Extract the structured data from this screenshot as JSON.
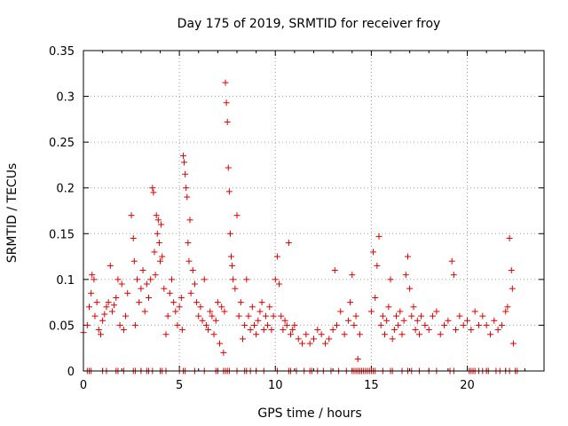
{
  "chart_data": {
    "type": "scatter",
    "title": "Day 175 of 2019, SRMTID for receiver froy",
    "xlabel": "GPS time / hours",
    "ylabel": "SRMTID / TECUs",
    "xlim": [
      0,
      24
    ],
    "ylim": [
      0,
      0.35
    ],
    "x_ticks": [
      0,
      5,
      10,
      15,
      20
    ],
    "x_tick_labels": [
      "0",
      "5",
      "10",
      "15",
      "20"
    ],
    "y_ticks": [
      0,
      0.05,
      0.1,
      0.15,
      0.2,
      0.25,
      0.3,
      0.35
    ],
    "y_tick_labels": [
      "0",
      "0.05",
      "0.1",
      "0.15",
      "0.2",
      "0.25",
      "0.3",
      "0.35"
    ],
    "grid": true,
    "marker": "+",
    "color": "#dd0000",
    "series": [
      {
        "name": "SRMTID",
        "points": [
          [
            0.0,
            0.042
          ],
          [
            0.2,
            0.05
          ],
          [
            0.3,
            0.07
          ],
          [
            0.4,
            0.085
          ],
          [
            0.45,
            0.105
          ],
          [
            0.55,
            0.1
          ],
          [
            0.6,
            0.06
          ],
          [
            0.7,
            0.075
          ],
          [
            0.8,
            0.045
          ],
          [
            0.9,
            0.04
          ],
          [
            1.0,
            0.055
          ],
          [
            1.1,
            0.062
          ],
          [
            1.2,
            0.07
          ],
          [
            1.3,
            0.075
          ],
          [
            1.4,
            0.115
          ],
          [
            1.5,
            0.065
          ],
          [
            1.6,
            0.072
          ],
          [
            1.7,
            0.08
          ],
          [
            1.8,
            0.1
          ],
          [
            1.9,
            0.05
          ],
          [
            2.0,
            0.095
          ],
          [
            2.1,
            0.045
          ],
          [
            2.2,
            0.06
          ],
          [
            2.3,
            0.085
          ],
          [
            2.5,
            0.17
          ],
          [
            2.6,
            0.145
          ],
          [
            2.65,
            0.12
          ],
          [
            2.7,
            0.05
          ],
          [
            2.8,
            0.1
          ],
          [
            2.9,
            0.075
          ],
          [
            3.0,
            0.09
          ],
          [
            3.1,
            0.11
          ],
          [
            3.2,
            0.065
          ],
          [
            3.3,
            0.095
          ],
          [
            3.4,
            0.08
          ],
          [
            3.5,
            0.1
          ],
          [
            3.6,
            0.2
          ],
          [
            3.65,
            0.195
          ],
          [
            3.7,
            0.13
          ],
          [
            3.75,
            0.105
          ],
          [
            3.8,
            0.17
          ],
          [
            3.85,
            0.15
          ],
          [
            3.9,
            0.165
          ],
          [
            3.95,
            0.14
          ],
          [
            4.0,
            0.12
          ],
          [
            4.05,
            0.16
          ],
          [
            4.1,
            0.125
          ],
          [
            4.2,
            0.09
          ],
          [
            4.3,
            0.04
          ],
          [
            4.4,
            0.06
          ],
          [
            4.5,
            0.085
          ],
          [
            4.6,
            0.1
          ],
          [
            4.7,
            0.075
          ],
          [
            4.8,
            0.065
          ],
          [
            4.9,
            0.05
          ],
          [
            5.0,
            0.07
          ],
          [
            5.1,
            0.08
          ],
          [
            5.15,
            0.045
          ],
          [
            5.2,
            0.235
          ],
          [
            5.25,
            0.228
          ],
          [
            5.3,
            0.215
          ],
          [
            5.35,
            0.2
          ],
          [
            5.4,
            0.19
          ],
          [
            5.45,
            0.14
          ],
          [
            5.5,
            0.12
          ],
          [
            5.55,
            0.165
          ],
          [
            5.6,
            0.085
          ],
          [
            5.7,
            0.11
          ],
          [
            5.8,
            0.095
          ],
          [
            5.9,
            0.075
          ],
          [
            6.0,
            0.06
          ],
          [
            6.1,
            0.07
          ],
          [
            6.2,
            0.055
          ],
          [
            6.3,
            0.1
          ],
          [
            6.4,
            0.05
          ],
          [
            6.5,
            0.045
          ],
          [
            6.6,
            0.065
          ],
          [
            6.7,
            0.06
          ],
          [
            6.8,
            0.04
          ],
          [
            6.9,
            0.055
          ],
          [
            7.0,
            0.075
          ],
          [
            7.1,
            0.03
          ],
          [
            7.2,
            0.07
          ],
          [
            7.3,
            0.02
          ],
          [
            7.35,
            0.065
          ],
          [
            7.4,
            0.315
          ],
          [
            7.45,
            0.293
          ],
          [
            7.5,
            0.272
          ],
          [
            7.55,
            0.222
          ],
          [
            7.6,
            0.196
          ],
          [
            7.65,
            0.15
          ],
          [
            7.7,
            0.125
          ],
          [
            7.75,
            0.115
          ],
          [
            7.8,
            0.1
          ],
          [
            7.9,
            0.09
          ],
          [
            8.0,
            0.17
          ],
          [
            8.1,
            0.06
          ],
          [
            8.2,
            0.075
          ],
          [
            8.3,
            0.035
          ],
          [
            8.4,
            0.05
          ],
          [
            8.5,
            0.1
          ],
          [
            8.6,
            0.06
          ],
          [
            8.7,
            0.045
          ],
          [
            8.8,
            0.07
          ],
          [
            8.9,
            0.05
          ],
          [
            9.0,
            0.04
          ],
          [
            9.1,
            0.055
          ],
          [
            9.2,
            0.065
          ],
          [
            9.3,
            0.075
          ],
          [
            9.4,
            0.045
          ],
          [
            9.5,
            0.06
          ],
          [
            9.6,
            0.05
          ],
          [
            9.7,
            0.07
          ],
          [
            9.8,
            0.045
          ],
          [
            9.9,
            0.06
          ],
          [
            10.0,
            0.1
          ],
          [
            10.1,
            0.125
          ],
          [
            10.2,
            0.095
          ],
          [
            10.3,
            0.06
          ],
          [
            10.4,
            0.045
          ],
          [
            10.5,
            0.055
          ],
          [
            10.6,
            0.05
          ],
          [
            10.7,
            0.14
          ],
          [
            10.8,
            0.04
          ],
          [
            10.9,
            0.045
          ],
          [
            11.0,
            0.05
          ],
          [
            11.2,
            0.035
          ],
          [
            11.4,
            0.03
          ],
          [
            11.6,
            0.04
          ],
          [
            11.8,
            0.03
          ],
          [
            12.0,
            0.035
          ],
          [
            12.2,
            0.045
          ],
          [
            12.4,
            0.04
          ],
          [
            12.6,
            0.03
          ],
          [
            12.8,
            0.035
          ],
          [
            13.0,
            0.045
          ],
          [
            13.1,
            0.11
          ],
          [
            13.2,
            0.05
          ],
          [
            13.4,
            0.065
          ],
          [
            13.6,
            0.04
          ],
          [
            13.8,
            0.055
          ],
          [
            13.9,
            0.075
          ],
          [
            14.0,
            0.105
          ],
          [
            14.1,
            0.05
          ],
          [
            14.2,
            0.06
          ],
          [
            14.3,
            0.013
          ],
          [
            14.4,
            0.04
          ],
          [
            15.0,
            0.065
          ],
          [
            15.1,
            0.13
          ],
          [
            15.2,
            0.08
          ],
          [
            15.3,
            0.115
          ],
          [
            15.4,
            0.147
          ],
          [
            15.5,
            0.05
          ],
          [
            15.6,
            0.06
          ],
          [
            15.7,
            0.04
          ],
          [
            15.8,
            0.055
          ],
          [
            15.9,
            0.07
          ],
          [
            16.0,
            0.1
          ],
          [
            16.1,
            0.035
          ],
          [
            16.2,
            0.045
          ],
          [
            16.3,
            0.06
          ],
          [
            16.4,
            0.05
          ],
          [
            16.5,
            0.065
          ],
          [
            16.6,
            0.04
          ],
          [
            16.7,
            0.055
          ],
          [
            16.8,
            0.105
          ],
          [
            16.9,
            0.125
          ],
          [
            17.0,
            0.09
          ],
          [
            17.1,
            0.06
          ],
          [
            17.2,
            0.07
          ],
          [
            17.3,
            0.045
          ],
          [
            17.4,
            0.055
          ],
          [
            17.5,
            0.04
          ],
          [
            17.6,
            0.06
          ],
          [
            17.8,
            0.05
          ],
          [
            18.0,
            0.045
          ],
          [
            18.2,
            0.06
          ],
          [
            18.4,
            0.065
          ],
          [
            18.6,
            0.04
          ],
          [
            18.8,
            0.05
          ],
          [
            19.0,
            0.055
          ],
          [
            19.2,
            0.12
          ],
          [
            19.3,
            0.105
          ],
          [
            19.4,
            0.045
          ],
          [
            19.6,
            0.06
          ],
          [
            19.8,
            0.05
          ],
          [
            20.0,
            0.055
          ],
          [
            20.2,
            0.045
          ],
          [
            20.4,
            0.065
          ],
          [
            20.6,
            0.05
          ],
          [
            20.8,
            0.06
          ],
          [
            21.0,
            0.05
          ],
          [
            21.2,
            0.04
          ],
          [
            21.4,
            0.055
          ],
          [
            21.6,
            0.045
          ],
          [
            21.8,
            0.05
          ],
          [
            22.0,
            0.065
          ],
          [
            22.1,
            0.07
          ],
          [
            22.2,
            0.145
          ],
          [
            22.3,
            0.11
          ],
          [
            22.35,
            0.09
          ],
          [
            22.4,
            0.03
          ]
        ],
        "zero_points": [
          0.2,
          0.3,
          0.4,
          1.0,
          1.2,
          1.7,
          1.8,
          2.1,
          2.6,
          2.7,
          3.0,
          3.3,
          3.4,
          3.6,
          4.0,
          4.1,
          4.3,
          5.0,
          5.2,
          5.3,
          5.8,
          6.3,
          6.9,
          7.0,
          7.3,
          7.4,
          7.5,
          7.6,
          8.0,
          8.4,
          8.5,
          8.7,
          9.0,
          9.4,
          10.1,
          10.7,
          10.8,
          11.1,
          11.5,
          11.8,
          11.9,
          12.2,
          12.5,
          12.9,
          13.3,
          13.7,
          14.0,
          14.1,
          14.2,
          14.3,
          14.4,
          14.5,
          14.6,
          14.7,
          14.8,
          14.9,
          15.0,
          15.1,
          15.2,
          15.6,
          16.0,
          16.1,
          16.6,
          16.9,
          17.1,
          17.5,
          18.0,
          18.4,
          19.1,
          19.3,
          20.1,
          20.2,
          20.3,
          20.4,
          20.6,
          20.8,
          21.0,
          21.1,
          21.5,
          21.7,
          22.0,
          22.2,
          22.5,
          22.6
        ]
      }
    ]
  }
}
